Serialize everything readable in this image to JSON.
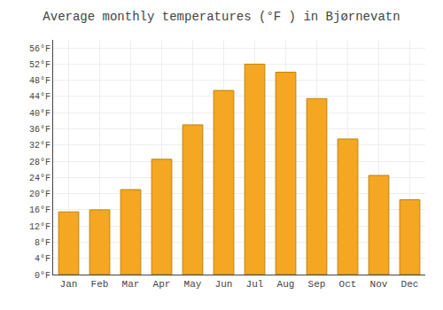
{
  "chart_data": {
    "type": "bar",
    "title": "Average monthly temperatures (°F ) in Bjørnevatn",
    "categories": [
      "Jan",
      "Feb",
      "Mar",
      "Apr",
      "May",
      "Jun",
      "Jul",
      "Aug",
      "Sep",
      "Oct",
      "Nov",
      "Dec"
    ],
    "values": [
      15.5,
      16.0,
      21.0,
      28.5,
      37.0,
      45.5,
      52.0,
      50.0,
      43.5,
      33.5,
      24.5,
      18.5
    ],
    "color": "#F5A623",
    "ylim": [
      0,
      58
    ],
    "yticks": [
      {
        "value": 0,
        "label": "0°F"
      },
      {
        "value": 4,
        "label": "4°F"
      },
      {
        "value": 8,
        "label": "8°F"
      },
      {
        "value": 12,
        "label": "12°F"
      },
      {
        "value": 16,
        "label": "16°F"
      },
      {
        "value": 20,
        "label": "20°F"
      },
      {
        "value": 24,
        "label": "24°F"
      },
      {
        "value": 28,
        "label": "28°F"
      },
      {
        "value": 32,
        "label": "32°F"
      },
      {
        "value": 36,
        "label": "36°F"
      },
      {
        "value": 40,
        "label": "40°F"
      },
      {
        "value": 44,
        "label": "44°F"
      },
      {
        "value": 48,
        "label": "48°F"
      },
      {
        "value": 52,
        "label": "52°F"
      },
      {
        "value": 56,
        "label": "56°F"
      }
    ],
    "grid": true
  }
}
